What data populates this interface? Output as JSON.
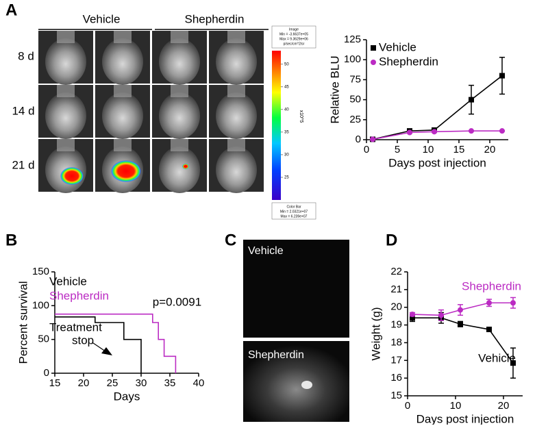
{
  "panels": {
    "a": "A",
    "b": "B",
    "c": "C",
    "d": "D"
  },
  "imaging": {
    "groups": [
      "Vehicle",
      "Shepherdin"
    ],
    "rows": [
      "8 d",
      "14 d",
      "21 d"
    ],
    "colorbar": {
      "header": [
        "Image",
        "Min = -3.6637e+05",
        "Max = 9.3629e+06",
        "p/sec/cm^2/sr"
      ],
      "lim": [
        20,
        53
      ],
      "ticks": [
        50,
        45,
        40,
        35,
        30,
        25
      ],
      "unit": "x10^5",
      "footer": [
        "Color Bar",
        "Min = 2.0321e+07",
        "Max = 6.239e+07"
      ]
    }
  },
  "microscopy": {
    "labels": [
      "Vehicle",
      "Shepherdin"
    ]
  },
  "chart_data": [
    {
      "type": "line",
      "x": [
        1,
        7,
        11,
        17,
        22
      ],
      "xlabel": "Days post injection",
      "ylabel": "Relative BLU",
      "xlim": [
        0,
        23
      ],
      "xticks": [
        0,
        5,
        10,
        15,
        20
      ],
      "ylim": [
        0,
        125
      ],
      "yticks": [
        0,
        25,
        50,
        75,
        100,
        125
      ],
      "legend": "upper left",
      "series": [
        {
          "name": "Vehicle",
          "color": "#000000",
          "marker": "square",
          "values": [
            0.5,
            11,
            12,
            50,
            80
          ],
          "errors": [
            0.5,
            1.5,
            1.5,
            18,
            23
          ]
        },
        {
          "name": "Shepherdin",
          "color": "#bb2bc3",
          "marker": "circle",
          "values": [
            0.5,
            9,
            10,
            11,
            11
          ],
          "errors": [
            0.5,
            1,
            1,
            0.5,
            0.5
          ]
        }
      ]
    },
    {
      "type": "step",
      "xlabel": "Days",
      "ylabel": "Percent survival",
      "xlim": [
        15,
        40
      ],
      "xticks": [
        15,
        20,
        25,
        30,
        35,
        40
      ],
      "ylim": [
        0,
        150
      ],
      "yticks": [
        0,
        50,
        100,
        150
      ],
      "legend": "upper left",
      "annotations": [
        "p=0.0091",
        "Treatment",
        "stop"
      ],
      "series": [
        {
          "name": "Vehicle",
          "color": "#000000",
          "x": [
            15,
            22,
            27,
            30
          ],
          "values": [
            83.3,
            75,
            50,
            0
          ]
        },
        {
          "name": "Shepherdin",
          "color": "#bb2bc3",
          "x": [
            15,
            32,
            33,
            34,
            36
          ],
          "values": [
            87.5,
            75,
            50,
            25,
            0
          ]
        }
      ]
    },
    {
      "type": "line",
      "x": [
        1,
        7,
        11,
        17,
        22
      ],
      "xlabel": "Days post injection",
      "ylabel": "Weight (g)",
      "xlim": [
        0,
        24
      ],
      "xticks": [
        0,
        10,
        20
      ],
      "ylim": [
        15,
        22
      ],
      "yticks": [
        15,
        16,
        17,
        18,
        19,
        20,
        21,
        22
      ],
      "legend": "inline",
      "series": [
        {
          "name": "Vehicle",
          "color": "#000000",
          "marker": "square",
          "values": [
            19.4,
            19.4,
            19.05,
            18.75,
            16.85
          ],
          "errors": [
            0.2,
            0.3,
            0.15,
            0.05,
            0.85
          ]
        },
        {
          "name": "Shepherdin",
          "color": "#bb2bc3",
          "marker": "circle",
          "values": [
            19.6,
            19.55,
            19.85,
            20.25,
            20.25
          ],
          "errors": [
            0.1,
            0.3,
            0.3,
            0.2,
            0.3
          ]
        }
      ]
    }
  ]
}
